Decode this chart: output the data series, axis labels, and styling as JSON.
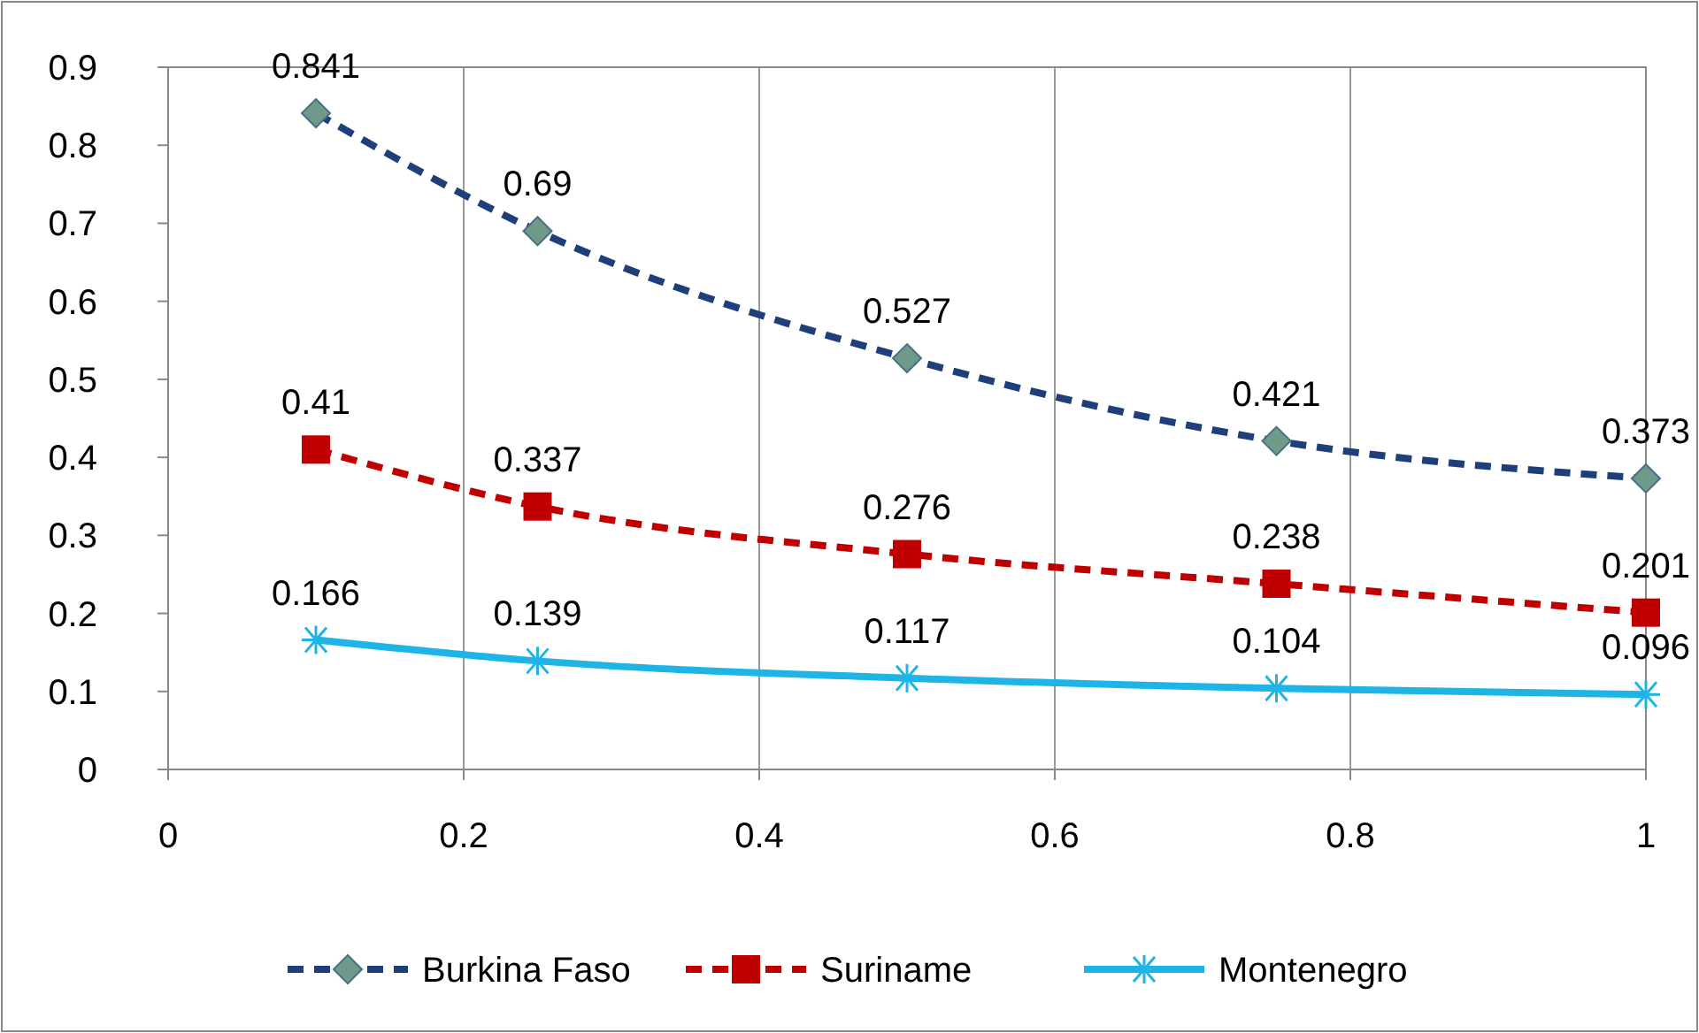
{
  "chart_data": {
    "type": "line",
    "x": [
      0.1,
      0.25,
      0.5,
      0.75,
      1
    ],
    "series": [
      {
        "name": "Burkina Faso",
        "color": "#1f3f7a",
        "values": [
          0.841,
          0.69,
          0.527,
          0.421,
          0.373
        ],
        "marker": "diamond",
        "line_style": "dashed"
      },
      {
        "name": "Suriname",
        "color": "#c00000",
        "values": [
          0.41,
          0.337,
          0.276,
          0.238,
          0.201
        ],
        "marker": "square",
        "line_style": "dashed"
      },
      {
        "name": "Montenegro",
        "color": "#1fb4e6",
        "values": [
          0.166,
          0.139,
          0.117,
          0.104,
          0.096
        ],
        "marker": "cross",
        "line_style": "solid"
      }
    ],
    "xlim": [
      0,
      1
    ],
    "xticks": [
      0,
      0.2,
      0.4,
      0.6,
      0.8,
      1
    ],
    "ylim": [
      0,
      0.9
    ],
    "yticks": [
      0,
      0.1,
      0.2,
      0.3,
      0.4,
      0.5,
      0.6,
      0.7,
      0.8,
      0.9
    ],
    "grid": "x",
    "legend": "bottom",
    "data_labels": true
  }
}
